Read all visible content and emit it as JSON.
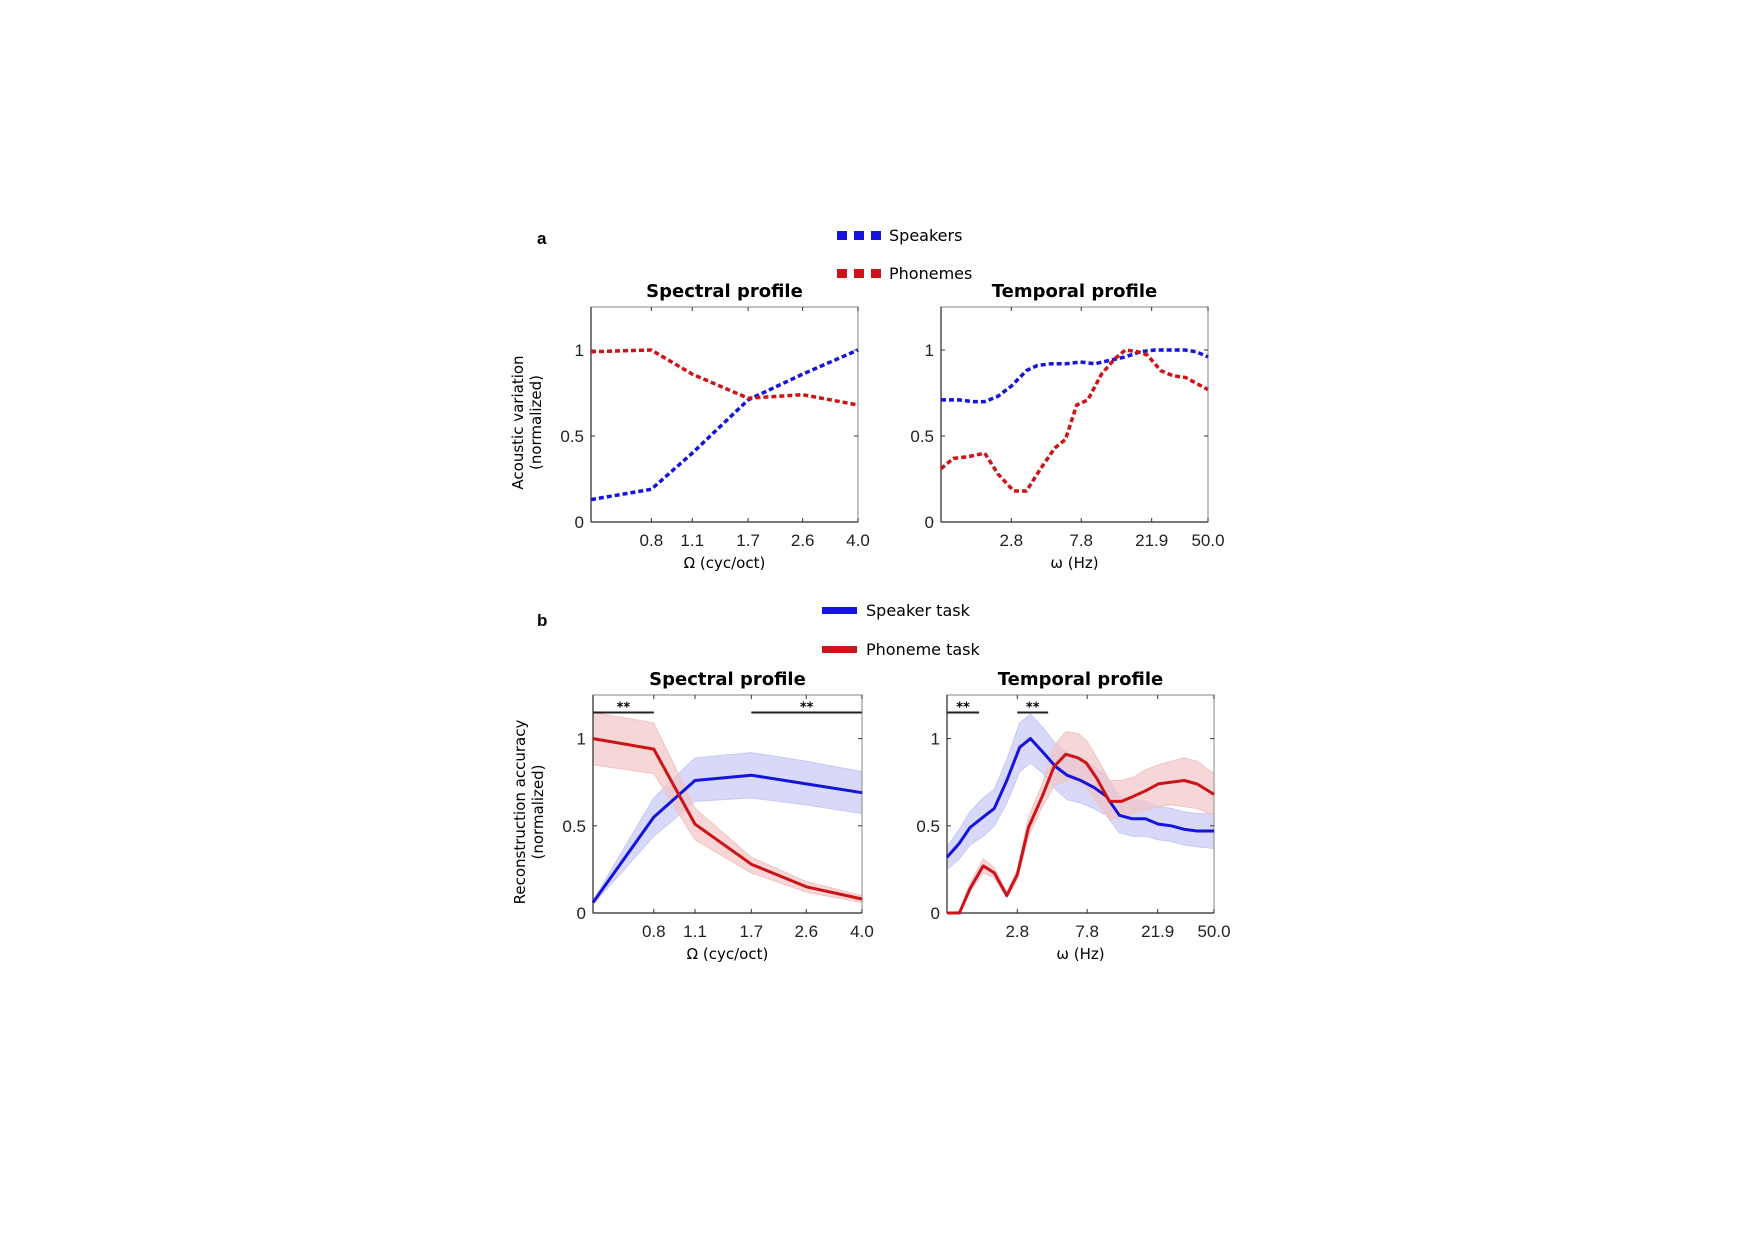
{
  "figure": {
    "panel_a_letter": "a",
    "panel_b_letter": "b"
  },
  "legend_a": {
    "speakers": "Speakers",
    "phonemes": "Phonemes"
  },
  "legend_b": {
    "speaker_task": "Speaker task",
    "phoneme_task": "Phoneme task"
  },
  "colors": {
    "blue": "#1414dc",
    "red": "#cc1418",
    "blue_band": "#c8c8f6",
    "red_band": "#f2c4c4",
    "axis": "#999999"
  },
  "chart_data": [
    {
      "id": "a_spectral",
      "type": "line",
      "title": "Spectral profile",
      "xlabel": "Ω (cyc/oct)",
      "ylabel": "Acoustic variation",
      "ylabel2": "(normalized)",
      "xscale": "log",
      "xlim": [
        0.5,
        4.0
      ],
      "ylim": [
        0,
        1.25
      ],
      "xticks": [
        0.8,
        1.1,
        1.7,
        2.6,
        4.0
      ],
      "xtick_labels": [
        "0.8",
        "1.1",
        "1.7",
        "2.6",
        "4.0"
      ],
      "yticks": [
        0,
        0.5,
        1
      ],
      "ytick_labels": [
        "0",
        "0.5",
        "1"
      ],
      "style": "dashed",
      "series": [
        {
          "name": "Speakers",
          "color": "blue",
          "x": [
            0.5,
            0.8,
            1.1,
            1.7,
            2.6,
            4.0
          ],
          "y": [
            0.13,
            0.19,
            0.4,
            0.71,
            0.86,
            1.0
          ]
        },
        {
          "name": "Phonemes",
          "color": "red",
          "x": [
            0.5,
            0.8,
            1.1,
            1.7,
            2.6,
            4.0
          ],
          "y": [
            0.99,
            1.0,
            0.86,
            0.72,
            0.74,
            0.68
          ]
        }
      ]
    },
    {
      "id": "a_temporal",
      "type": "line",
      "title": "Temporal profile",
      "xlabel": "ω (Hz)",
      "xscale": "log",
      "xlim": [
        1.0,
        50.0
      ],
      "ylim": [
        0,
        1.25
      ],
      "xticks": [
        2.8,
        7.8,
        21.9,
        50.0
      ],
      "xtick_labels": [
        "2.8",
        "7.8",
        "21.9",
        "50.0"
      ],
      "yticks": [
        0,
        0.5,
        1
      ],
      "ytick_labels": [
        "0",
        "0.5",
        "1"
      ],
      "style": "dashed",
      "series": [
        {
          "name": "Speakers",
          "color": "blue",
          "x": [
            1.0,
            1.3,
            1.6,
            1.9,
            2.3,
            2.8,
            3.5,
            4.1,
            5.0,
            6.2,
            7.7,
            9.5,
            11.9,
            14.9,
            18.5,
            23.0,
            28.6,
            35.6,
            42.0,
            50.0
          ],
          "y": [
            0.71,
            0.71,
            0.7,
            0.7,
            0.73,
            0.79,
            0.88,
            0.91,
            0.92,
            0.92,
            0.93,
            0.92,
            0.94,
            0.96,
            0.99,
            1.0,
            1.0,
            1.0,
            0.99,
            0.96
          ]
        },
        {
          "name": "Phonemes",
          "color": "red",
          "x": [
            1.0,
            1.2,
            1.5,
            1.9,
            2.3,
            2.9,
            3.5,
            4.3,
            5.3,
            6.2,
            7.3,
            8.6,
            10.5,
            12.8,
            14.9,
            17.8,
            20.6,
            25.0,
            30.0,
            36.0,
            50.0
          ],
          "y": [
            0.31,
            0.37,
            0.38,
            0.4,
            0.28,
            0.18,
            0.18,
            0.31,
            0.43,
            0.48,
            0.68,
            0.71,
            0.86,
            0.95,
            1.0,
            0.99,
            0.97,
            0.88,
            0.85,
            0.84,
            0.77
          ]
        }
      ]
    },
    {
      "id": "b_spectral",
      "type": "line",
      "title": "Spectral profile",
      "xlabel": "Ω (cyc/oct)",
      "ylabel": "Reconstruction accuracy",
      "ylabel2": "(normalized)",
      "xscale": "log",
      "xlim": [
        0.5,
        4.0
      ],
      "ylim": [
        0,
        1.25
      ],
      "xticks": [
        0.8,
        1.1,
        1.7,
        2.6,
        4.0
      ],
      "xtick_labels": [
        "0.8",
        "1.1",
        "1.7",
        "2.6",
        "4.0"
      ],
      "yticks": [
        0,
        0.5,
        1
      ],
      "ytick_labels": [
        "0",
        "0.5",
        "1"
      ],
      "style": "solid-with-band",
      "significance": [
        {
          "x0": 0.5,
          "x1": 0.8,
          "y": 1.15,
          "label": "**"
        },
        {
          "x0": 1.7,
          "x1": 4.0,
          "y": 1.15,
          "label": "**"
        }
      ],
      "series": [
        {
          "name": "Speaker task",
          "color": "blue",
          "x": [
            0.5,
            0.8,
            1.1,
            1.7,
            2.6,
            4.0
          ],
          "y": [
            0.06,
            0.55,
            0.76,
            0.79,
            0.74,
            0.69
          ],
          "lower": [
            0.05,
            0.44,
            0.64,
            0.66,
            0.62,
            0.57
          ],
          "upper": [
            0.07,
            0.66,
            0.89,
            0.92,
            0.87,
            0.81
          ]
        },
        {
          "name": "Phoneme task",
          "color": "red",
          "x": [
            0.5,
            0.8,
            1.1,
            1.7,
            2.6,
            4.0
          ],
          "y": [
            1.0,
            0.94,
            0.51,
            0.28,
            0.15,
            0.08
          ],
          "lower": [
            0.85,
            0.8,
            0.42,
            0.23,
            0.12,
            0.06
          ],
          "upper": [
            1.15,
            1.09,
            0.6,
            0.32,
            0.18,
            0.1
          ]
        }
      ]
    },
    {
      "id": "b_temporal",
      "type": "line",
      "title": "Temporal profile",
      "xlabel": "ω (Hz)",
      "xscale": "log",
      "xlim": [
        1.0,
        50.0
      ],
      "ylim": [
        0,
        1.25
      ],
      "xticks": [
        2.8,
        7.8,
        21.9,
        50.0
      ],
      "xtick_labels": [
        "2.8",
        "7.8",
        "21.9",
        "50.0"
      ],
      "yticks": [
        0,
        0.5,
        1
      ],
      "ytick_labels": [
        "0",
        "0.5",
        "1"
      ],
      "style": "solid-with-band",
      "significance": [
        {
          "x0": 1.0,
          "x1": 1.6,
          "y": 1.15,
          "label": "**"
        },
        {
          "x0": 2.8,
          "x1": 4.4,
          "y": 1.15,
          "label": "**"
        }
      ],
      "series": [
        {
          "name": "Speaker task",
          "color": "blue",
          "x": [
            1.0,
            1.2,
            1.4,
            1.7,
            2.0,
            2.4,
            2.9,
            3.4,
            4.1,
            4.9,
            5.8,
            7.1,
            8.6,
            10.3,
            12.5,
            15.1,
            18.3,
            22.1,
            26.7,
            32.3,
            39.0,
            50.0
          ],
          "y": [
            0.32,
            0.4,
            0.49,
            0.55,
            0.6,
            0.76,
            0.95,
            1.0,
            0.92,
            0.84,
            0.79,
            0.76,
            0.72,
            0.67,
            0.56,
            0.54,
            0.54,
            0.51,
            0.5,
            0.48,
            0.47,
            0.47
          ],
          "lower": [
            0.25,
            0.31,
            0.39,
            0.44,
            0.5,
            0.63,
            0.81,
            0.86,
            0.8,
            0.71,
            0.65,
            0.63,
            0.6,
            0.56,
            0.46,
            0.44,
            0.44,
            0.42,
            0.41,
            0.39,
            0.38,
            0.37
          ],
          "upper": [
            0.38,
            0.48,
            0.58,
            0.66,
            0.71,
            0.88,
            1.09,
            1.14,
            1.06,
            0.97,
            0.92,
            0.89,
            0.84,
            0.79,
            0.67,
            0.65,
            0.64,
            0.61,
            0.6,
            0.58,
            0.57,
            0.57
          ]
        },
        {
          "name": "Phoneme task",
          "color": "red",
          "x": [
            1.0,
            1.2,
            1.4,
            1.7,
            2.0,
            2.4,
            2.8,
            3.3,
            4.0,
            4.8,
            5.7,
            6.8,
            7.7,
            9.0,
            10.8,
            12.9,
            15.4,
            18.3,
            22.1,
            26.7,
            32.3,
            39.0,
            50.0
          ],
          "y": [
            0.0,
            0.0,
            0.14,
            0.27,
            0.23,
            0.1,
            0.22,
            0.49,
            0.66,
            0.84,
            0.91,
            0.89,
            0.86,
            0.77,
            0.64,
            0.64,
            0.67,
            0.7,
            0.74,
            0.75,
            0.76,
            0.74,
            0.68
          ],
          "lower": [
            0.0,
            0.0,
            0.12,
            0.23,
            0.2,
            0.09,
            0.19,
            0.44,
            0.6,
            0.73,
            0.76,
            0.76,
            0.72,
            0.63,
            0.54,
            0.55,
            0.57,
            0.59,
            0.61,
            0.62,
            0.61,
            0.6,
            0.56
          ],
          "upper": [
            0.0,
            0.01,
            0.17,
            0.31,
            0.26,
            0.12,
            0.25,
            0.55,
            0.73,
            0.96,
            1.04,
            1.03,
            0.99,
            0.89,
            0.76,
            0.76,
            0.78,
            0.82,
            0.85,
            0.87,
            0.89,
            0.87,
            0.8
          ]
        }
      ]
    }
  ]
}
